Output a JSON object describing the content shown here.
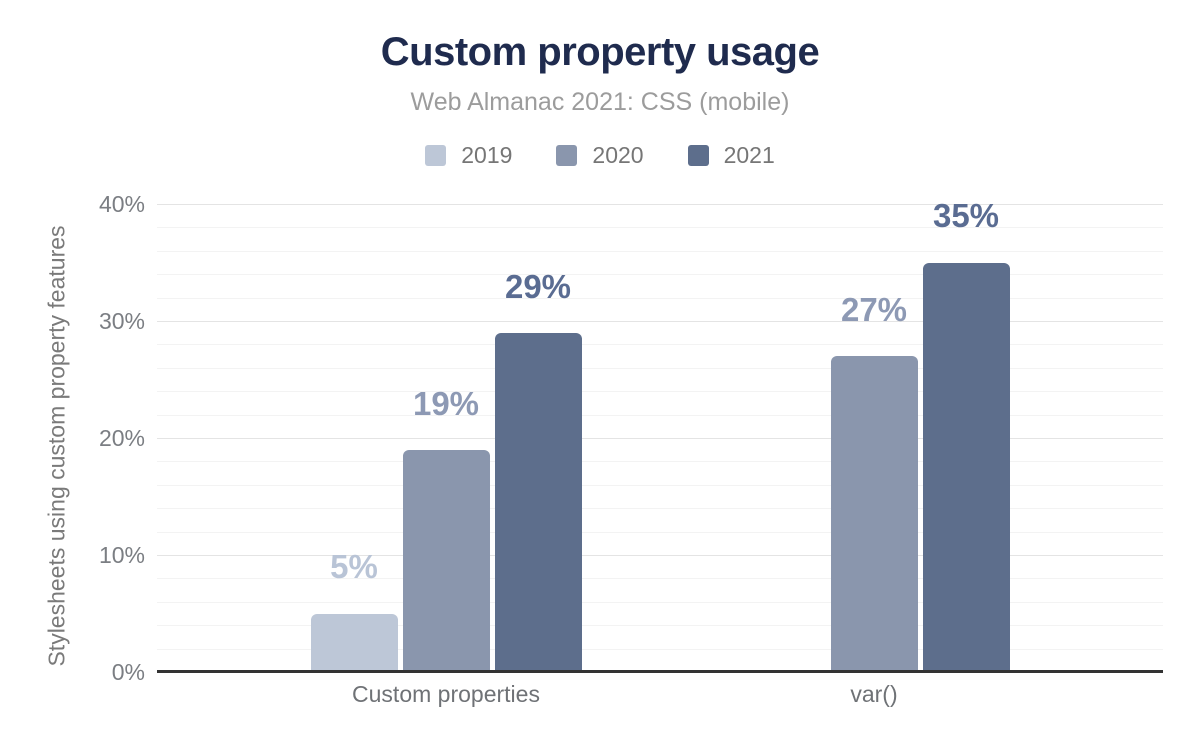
{
  "chart_data": {
    "type": "bar",
    "title": "Custom property usage",
    "subtitle": "Web Almanac 2021: CSS (mobile)",
    "ylabel": "Stylesheets using custom property features",
    "xlabel": "",
    "categories": [
      "Custom properties",
      "var()"
    ],
    "series": [
      {
        "name": "2019",
        "color": "#bdc7d7",
        "label_color": "#b9c4d6",
        "values": [
          5,
          null
        ],
        "labels": [
          "5%",
          null
        ]
      },
      {
        "name": "2020",
        "color": "#8a96ad",
        "label_color": "#8d99b4",
        "values": [
          19,
          27
        ],
        "labels": [
          "19%",
          "27%"
        ]
      },
      {
        "name": "2021",
        "color": "#5d6e8c",
        "label_color": "#5a6c92",
        "values": [
          29,
          35
        ],
        "labels": [
          "29%",
          "35%"
        ]
      }
    ],
    "y_ticks": [
      "0%",
      "10%",
      "20%",
      "30%",
      "40%"
    ],
    "y_tick_values": [
      0,
      10,
      20,
      30,
      40
    ],
    "ylim": [
      0,
      40
    ],
    "grid": {
      "major_step": 10,
      "minor_step": 2,
      "visible": true
    },
    "legend_position": "top",
    "value_label_format": "{value}%"
  },
  "colors": {
    "title": "#1f2b4e",
    "subtitle": "#9c9c9c",
    "axis_line": "#333333",
    "grid_major": "#e4e4e4",
    "grid_minor": "#f3f3f3",
    "tick_text": "#7b7e83",
    "background": "#ffffff"
  }
}
